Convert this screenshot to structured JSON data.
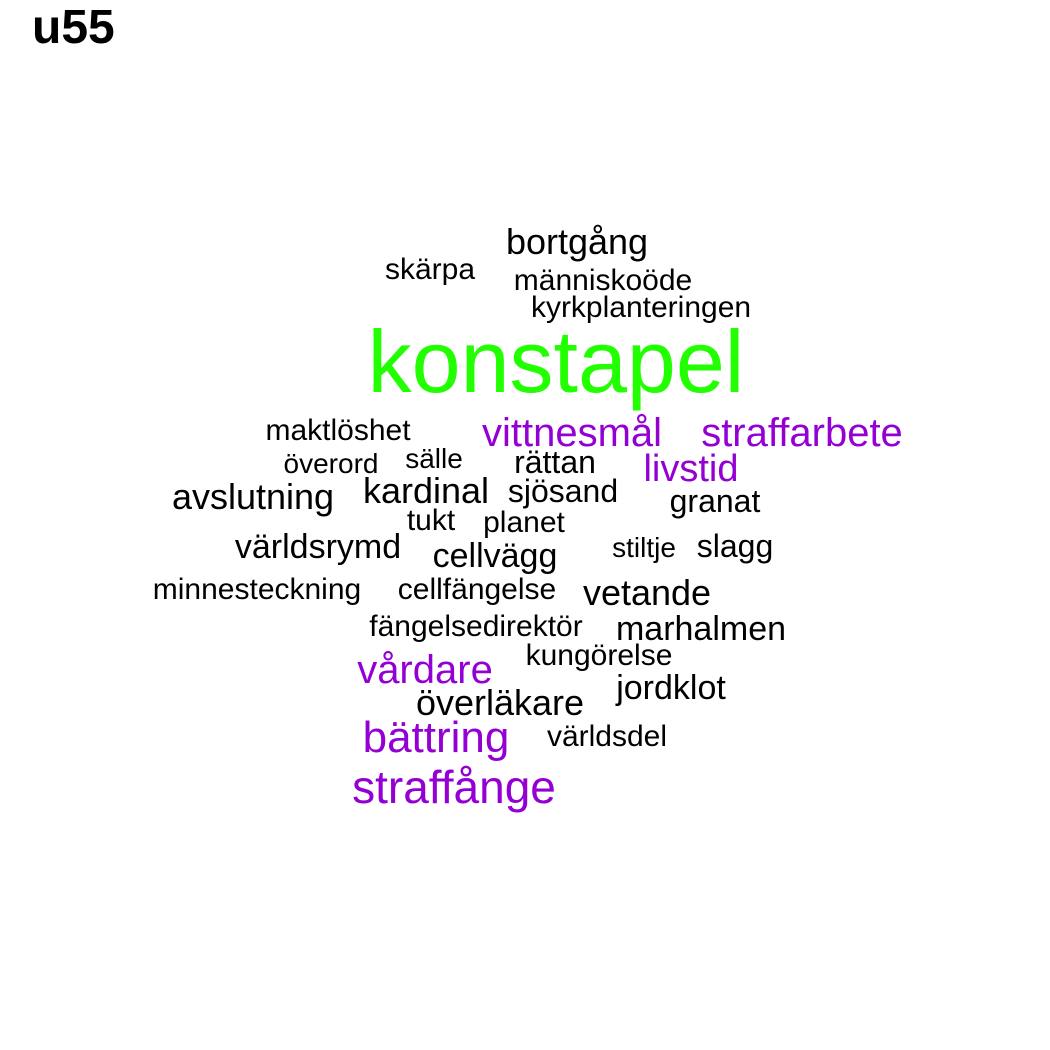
{
  "title": "u55",
  "colors": {
    "default": "#000000",
    "medium": "#9400D3",
    "top": "#22FF00"
  },
  "words": [
    {
      "text": "konstapel",
      "color": "#22FF00"
    },
    {
      "text": "bortgång",
      "color": "#000000"
    },
    {
      "text": "skärpa",
      "color": "#000000"
    },
    {
      "text": "människoöde",
      "color": "#000000"
    },
    {
      "text": "kyrkplanteringen",
      "color": "#000000"
    },
    {
      "text": "maktlöshet",
      "color": "#000000"
    },
    {
      "text": "vittnesmål",
      "color": "#9400D3"
    },
    {
      "text": "straffarbete",
      "color": "#9400D3"
    },
    {
      "text": "överord",
      "color": "#000000"
    },
    {
      "text": "sälle",
      "color": "#000000"
    },
    {
      "text": "rättan",
      "color": "#000000"
    },
    {
      "text": "livstid",
      "color": "#9400D3"
    },
    {
      "text": "avslutning",
      "color": "#000000"
    },
    {
      "text": "kardinal",
      "color": "#000000"
    },
    {
      "text": "sjösand",
      "color": "#000000"
    },
    {
      "text": "granat",
      "color": "#000000"
    },
    {
      "text": "tukt",
      "color": "#000000"
    },
    {
      "text": "planet",
      "color": "#000000"
    },
    {
      "text": "världsrymd",
      "color": "#000000"
    },
    {
      "text": "cellvägg",
      "color": "#000000"
    },
    {
      "text": "stiltje",
      "color": "#000000"
    },
    {
      "text": "slagg",
      "color": "#000000"
    },
    {
      "text": "minnesteckning",
      "color": "#000000"
    },
    {
      "text": "cellfängelse",
      "color": "#000000"
    },
    {
      "text": "vetande",
      "color": "#000000"
    },
    {
      "text": "fängelsedirektör",
      "color": "#000000"
    },
    {
      "text": "marhalmen",
      "color": "#000000"
    },
    {
      "text": "kungörelse",
      "color": "#000000"
    },
    {
      "text": "vårdare",
      "color": "#9400D3"
    },
    {
      "text": "jordklot",
      "color": "#000000"
    },
    {
      "text": "överläkare",
      "color": "#000000"
    },
    {
      "text": "bättring",
      "color": "#9400D3"
    },
    {
      "text": "världsdel",
      "color": "#000000"
    },
    {
      "text": "straffånge",
      "color": "#9400D3"
    }
  ]
}
